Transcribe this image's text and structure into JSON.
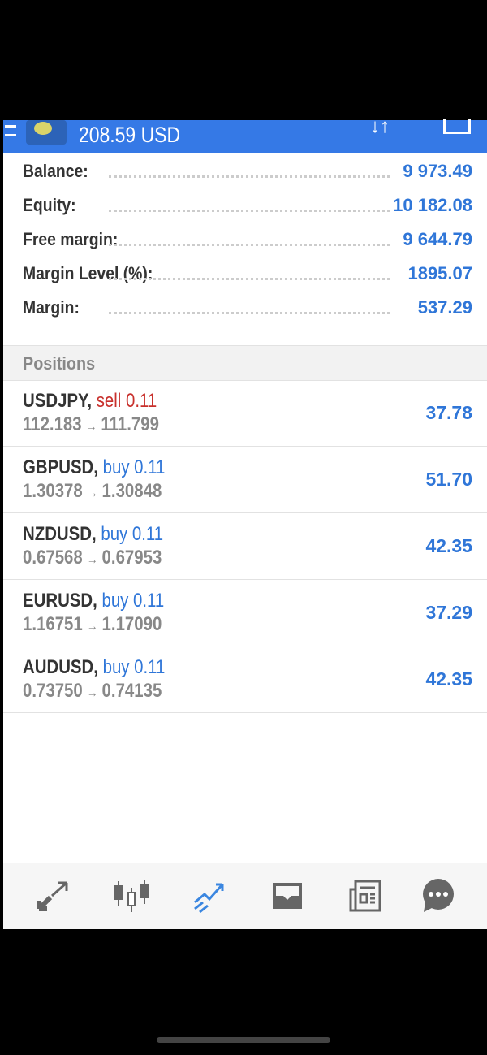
{
  "header": {
    "title": "208.59 USD"
  },
  "summary": [
    {
      "label": "Balance:",
      "value": "9 973.49"
    },
    {
      "label": "Equity:",
      "value": "10 182.08"
    },
    {
      "label": "Free margin:",
      "value": "9 644.79"
    },
    {
      "label": "Margin Level (%):",
      "value": "1895.07"
    },
    {
      "label": "Margin:",
      "value": "537.29"
    }
  ],
  "positions_label": "Positions",
  "positions": [
    {
      "symbol": "USDJPY,",
      "side": "sell 0.11",
      "open": "112.183",
      "current": "111.799",
      "profit": "37.78"
    },
    {
      "symbol": "GBPUSD,",
      "side": "buy 0.11",
      "open": "1.30378",
      "current": "1.30848",
      "profit": "51.70"
    },
    {
      "symbol": "NZDUSD,",
      "side": "buy 0.11",
      "open": "0.67568",
      "current": "0.67953",
      "profit": "42.35"
    },
    {
      "symbol": "EURUSD,",
      "side": "buy 0.11",
      "open": "1.16751",
      "current": "1.17090",
      "profit": "37.29"
    },
    {
      "symbol": "AUDUSD,",
      "side": "buy 0.11",
      "open": "0.73750",
      "current": "0.74135",
      "profit": "42.35"
    }
  ],
  "arrow": "→",
  "colors": {
    "header": "#3579e6",
    "sell": "#c8302c",
    "buy": "#2f76d8",
    "active_tab": "#3a86e0",
    "tab": "#666666"
  },
  "nav": [
    "quotes-icon",
    "chart-icon",
    "trade-icon",
    "inbox-icon",
    "news-icon",
    "chat-icon"
  ]
}
